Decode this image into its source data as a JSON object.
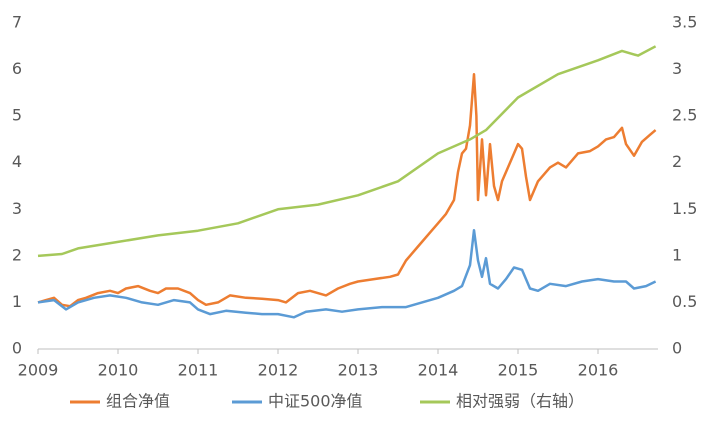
{
  "chart_data": {
    "type": "line",
    "xlim": [
      2009,
      2016.75
    ],
    "xticks": [
      2009,
      2010,
      2011,
      2012,
      2013,
      2014,
      2015,
      2016
    ],
    "ylim": [
      0,
      7
    ],
    "yticks": [
      0,
      1,
      2,
      3,
      4,
      5,
      6,
      7
    ],
    "y2lim": [
      0,
      3.5
    ],
    "y2ticks": [
      0,
      0.5,
      1,
      1.5,
      2,
      2.5,
      3,
      3.5
    ],
    "grid": false,
    "legend": "bottom",
    "series": [
      {
        "name": "组合净值",
        "color": "#ed7d31",
        "x": [
          2009.0,
          2009.1,
          2009.2,
          2009.3,
          2009.4,
          2009.5,
          2009.6,
          2009.75,
          2009.9,
          2010.0,
          2010.1,
          2010.25,
          2010.4,
          2010.5,
          2010.6,
          2010.75,
          2010.9,
          2011.0,
          2011.1,
          2011.25,
          2011.4,
          2011.6,
          2011.8,
          2012.0,
          2012.1,
          2012.25,
          2012.4,
          2012.6,
          2012.75,
          2012.9,
          2013.0,
          2013.2,
          2013.4,
          2013.5,
          2013.6,
          2013.75,
          2013.9,
          2014.0,
          2014.1,
          2014.2,
          2014.25,
          2014.3,
          2014.35,
          2014.4,
          2014.45,
          2014.48,
          2014.5,
          2014.55,
          2014.6,
          2014.65,
          2014.7,
          2014.75,
          2014.8,
          2014.9,
          2015.0,
          2015.05,
          2015.1,
          2015.15,
          2015.25,
          2015.4,
          2015.5,
          2015.6,
          2015.75,
          2015.9,
          2016.0,
          2016.1,
          2016.2,
          2016.3,
          2016.35,
          2016.45,
          2016.55,
          2016.65,
          2016.72
        ],
        "values": [
          1.0,
          1.05,
          1.1,
          0.95,
          0.92,
          1.05,
          1.1,
          1.2,
          1.25,
          1.2,
          1.3,
          1.35,
          1.25,
          1.2,
          1.3,
          1.3,
          1.2,
          1.05,
          0.95,
          1.0,
          1.15,
          1.1,
          1.08,
          1.05,
          1.0,
          1.2,
          1.25,
          1.15,
          1.3,
          1.4,
          1.45,
          1.5,
          1.55,
          1.6,
          1.9,
          2.2,
          2.5,
          2.7,
          2.9,
          3.2,
          3.8,
          4.2,
          4.3,
          4.8,
          5.9,
          5.0,
          3.2,
          4.5,
          3.3,
          4.4,
          3.5,
          3.2,
          3.6,
          4.0,
          4.4,
          4.3,
          3.7,
          3.2,
          3.6,
          3.9,
          4.0,
          3.9,
          4.2,
          4.25,
          4.35,
          4.5,
          4.55,
          4.75,
          4.4,
          4.15,
          4.45,
          4.6,
          4.7
        ]
      },
      {
        "name": "中证500净值",
        "color": "#5b9bd5",
        "x": [
          2009.0,
          2009.2,
          2009.35,
          2009.5,
          2009.7,
          2009.9,
          2010.1,
          2010.3,
          2010.5,
          2010.7,
          2010.9,
          2011.0,
          2011.15,
          2011.35,
          2011.6,
          2011.8,
          2012.0,
          2012.2,
          2012.35,
          2012.6,
          2012.8,
          2013.0,
          2013.3,
          2013.6,
          2013.8,
          2014.0,
          2014.2,
          2014.3,
          2014.4,
          2014.45,
          2014.5,
          2014.55,
          2014.6,
          2014.65,
          2014.75,
          2014.85,
          2014.95,
          2015.05,
          2015.15,
          2015.25,
          2015.4,
          2015.6,
          2015.8,
          2016.0,
          2016.2,
          2016.35,
          2016.45,
          2016.6,
          2016.72
        ],
        "values": [
          1.0,
          1.05,
          0.85,
          1.0,
          1.1,
          1.15,
          1.1,
          1.0,
          0.95,
          1.05,
          1.0,
          0.85,
          0.75,
          0.82,
          0.78,
          0.75,
          0.75,
          0.68,
          0.8,
          0.85,
          0.8,
          0.85,
          0.9,
          0.9,
          1.0,
          1.1,
          1.25,
          1.35,
          1.8,
          2.55,
          1.9,
          1.55,
          1.95,
          1.4,
          1.3,
          1.5,
          1.75,
          1.7,
          1.3,
          1.25,
          1.4,
          1.35,
          1.45,
          1.5,
          1.45,
          1.45,
          1.3,
          1.35,
          1.45
        ]
      },
      {
        "name": "相对强弱（右轴）",
        "color": "#a5c85a",
        "axis": "y2",
        "x": [
          2009.0,
          2009.3,
          2009.5,
          2010.0,
          2010.5,
          2011.0,
          2011.5,
          2012.0,
          2012.5,
          2013.0,
          2013.5,
          2014.0,
          2014.4,
          2014.6,
          2015.0,
          2015.5,
          2016.0,
          2016.3,
          2016.5,
          2016.72
        ],
        "values": [
          1.0,
          1.02,
          1.08,
          1.15,
          1.22,
          1.27,
          1.35,
          1.5,
          1.55,
          1.65,
          1.8,
          2.1,
          2.25,
          2.35,
          2.7,
          2.95,
          3.1,
          3.2,
          3.15,
          3.25
        ]
      }
    ]
  }
}
